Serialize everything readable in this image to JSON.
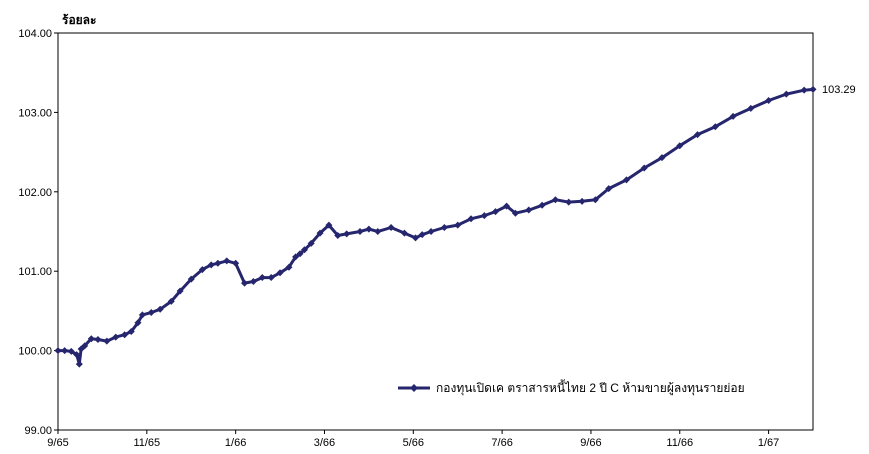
{
  "chart_data": {
    "type": "line",
    "title": "",
    "ylabel": "ร้อยละ",
    "xlabel": "",
    "ylim": [
      99.0,
      104.0
    ],
    "y_ticks": [
      "99.00",
      "100.00",
      "101.00",
      "102.00",
      "103.00",
      "104.00"
    ],
    "x_ticks": [
      "9/65",
      "11/65",
      "1/66",
      "3/66",
      "5/66",
      "7/66",
      "9/66",
      "11/66",
      "1/67"
    ],
    "x_range_months": [
      0,
      17
    ],
    "grid": false,
    "legend_position": "bottom-right",
    "end_value_label": "103.29",
    "series": [
      {
        "name": "กองทุนเปิดเค ตราสารหนี้ไทย 2 ปี C ห้ามขายผู้ลงทุนรายย่อย",
        "color": "#26266e",
        "x": [
          0.0,
          0.15,
          0.3,
          0.42,
          0.48,
          0.52,
          0.6,
          0.75,
          0.9,
          1.1,
          1.3,
          1.5,
          1.65,
          1.8,
          1.9,
          2.1,
          2.3,
          2.55,
          2.75,
          3.0,
          3.25,
          3.45,
          3.6,
          3.8,
          4.0,
          4.2,
          4.4,
          4.6,
          4.8,
          5.0,
          5.2,
          5.35,
          5.45,
          5.55,
          5.7,
          5.9,
          6.1,
          6.3,
          6.5,
          6.8,
          7.0,
          7.2,
          7.5,
          7.8,
          8.05,
          8.2,
          8.4,
          8.7,
          9.0,
          9.3,
          9.6,
          9.85,
          10.1,
          10.3,
          10.6,
          10.9,
          11.2,
          11.5,
          11.8,
          12.1,
          12.4,
          12.8,
          13.2,
          13.6,
          14.0,
          14.4,
          14.8,
          15.2,
          15.6,
          16.0,
          16.4,
          16.8,
          17.0
        ],
        "y": [
          100.0,
          100.0,
          99.99,
          99.95,
          99.83,
          100.02,
          100.06,
          100.15,
          100.14,
          100.12,
          100.17,
          100.2,
          100.24,
          100.35,
          100.45,
          100.48,
          100.52,
          100.62,
          100.75,
          100.9,
          101.02,
          101.08,
          101.1,
          101.13,
          101.1,
          100.85,
          100.87,
          100.92,
          100.92,
          100.98,
          101.05,
          101.18,
          101.22,
          101.27,
          101.35,
          101.48,
          101.58,
          101.45,
          101.47,
          101.5,
          101.53,
          101.5,
          101.55,
          101.48,
          101.42,
          101.46,
          101.5,
          101.55,
          101.58,
          101.66,
          101.7,
          101.75,
          101.82,
          101.73,
          101.77,
          101.83,
          101.9,
          101.87,
          101.88,
          101.9,
          102.04,
          102.15,
          102.3,
          102.43,
          102.58,
          102.72,
          102.82,
          102.95,
          103.05,
          103.15,
          103.23,
          103.28,
          103.29
        ]
      }
    ]
  }
}
